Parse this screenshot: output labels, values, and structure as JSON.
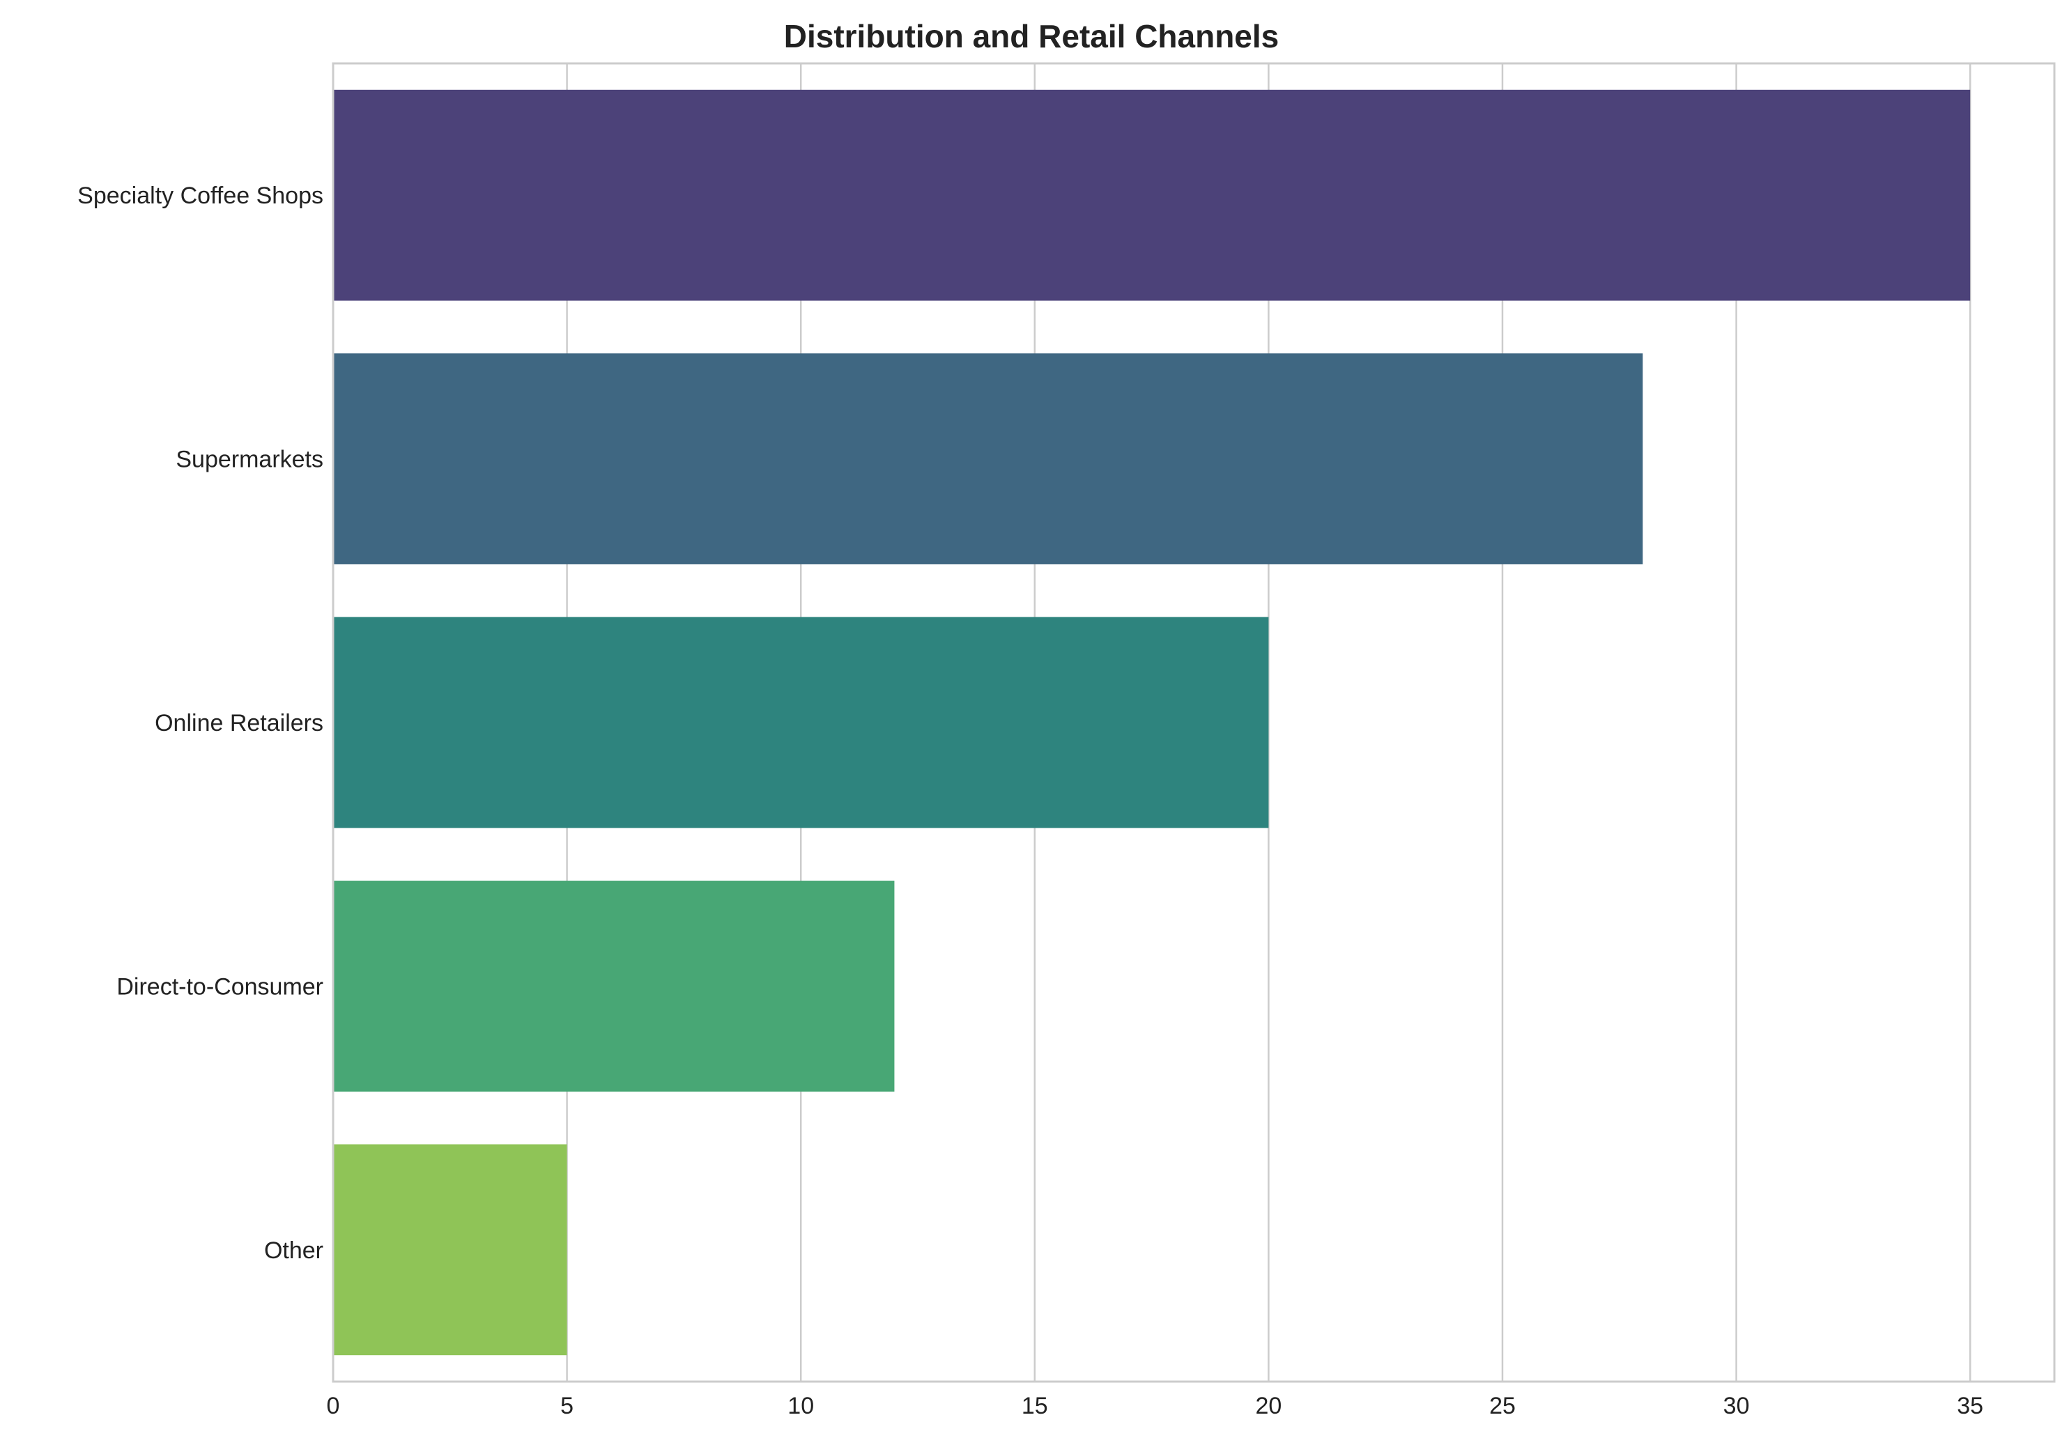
{
  "chart_data": {
    "type": "bar",
    "orientation": "horizontal",
    "title": "Distribution and Retail Channels",
    "xlabel": "",
    "ylabel": "",
    "categories": [
      "Specialty Coffee Shops",
      "Supermarkets",
      "Online Retailers",
      "Direct-to-Consumer",
      "Other"
    ],
    "values": [
      35,
      28,
      20,
      12,
      5
    ],
    "colors": [
      "#4c4279",
      "#3f6782",
      "#2e847e",
      "#48a775",
      "#8fc457"
    ],
    "xlim": [
      0,
      36.8
    ],
    "xticks": [
      0,
      5,
      10,
      15,
      20,
      25,
      30,
      35
    ],
    "grid": "vertical",
    "legend": "none"
  }
}
